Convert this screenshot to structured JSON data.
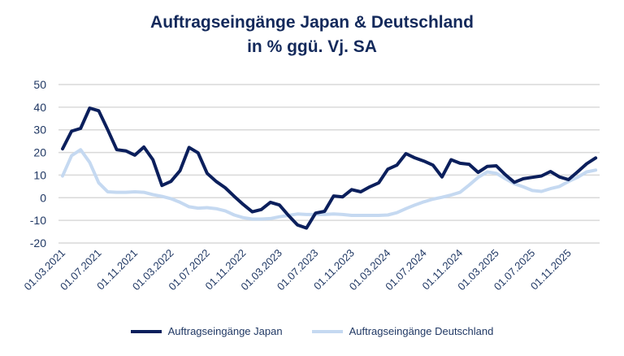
{
  "chart_data": {
    "type": "line",
    "title": "Auftragseingänge Japan & Deutschland",
    "subtitle": "in % ggü. Vj. SA",
    "xlabel": "",
    "ylabel": "",
    "ylim": [
      -20,
      50
    ],
    "yticks": [
      "50",
      "40",
      "30",
      "20",
      "10",
      "0",
      "-10",
      "-20"
    ],
    "xtick_labels": [
      "01.03.2021",
      "01.07.2021",
      "01.11.2021",
      "01.03.2022",
      "01.07.2022",
      "01.11.2022",
      "01.03.2023",
      "01.07.2023",
      "01.11.2023",
      "01.03.2024",
      "01.07.2024",
      "01.11.2024",
      "01.03.2025",
      "01.07.2025",
      "01.11.2025"
    ],
    "x_start": "2021-03",
    "x_frequency": "monthly",
    "grid": "horizontal",
    "legend_position": "bottom",
    "series": [
      {
        "name": "Auftragseingänge Japan",
        "color": "#0b1f5c",
        "values": [
          21.6,
          29.4,
          30.6,
          39.6,
          38.4,
          30,
          21.2,
          20.7,
          18.8,
          22.4,
          16.8,
          5.4,
          7.2,
          12,
          22.2,
          19.8,
          10.8,
          7.2,
          4.4,
          0.6,
          -3,
          -6.2,
          -5.2,
          -2,
          -3.2,
          -7.8,
          -12,
          -13.4,
          -6.8,
          -6,
          0.8,
          0.4,
          3.6,
          2.6,
          4.8,
          6.6,
          12.6,
          14.4,
          19.5,
          17.6,
          16.2,
          14.4,
          9.2,
          16.8,
          15.2,
          14.8,
          11.2,
          13.8,
          14.1,
          10.2,
          6.8,
          8.4,
          9,
          9.6,
          11.6,
          9.2,
          8,
          11.4,
          15,
          17.6
        ]
      },
      {
        "name": "Auftragseingänge Deutschland",
        "color": "#c5d9f1",
        "values": [
          9.6,
          18.6,
          21.2,
          15.6,
          6.6,
          2.6,
          2.4,
          2.4,
          2.6,
          2.4,
          1.4,
          0.6,
          -0.4,
          -2,
          -4,
          -4.6,
          -4.4,
          -4.8,
          -5.8,
          -7.6,
          -8.8,
          -9.4,
          -9.4,
          -9.2,
          -8.4,
          -7.8,
          -7.2,
          -7.4,
          -7.4,
          -7.4,
          -7.2,
          -7.4,
          -7.8,
          -7.8,
          -7.8,
          -7.8,
          -7.6,
          -6.6,
          -4.8,
          -3.2,
          -1.8,
          -0.6,
          0.2,
          1.2,
          2.4,
          5.6,
          9,
          11.4,
          10.8,
          8.4,
          6.2,
          4.8,
          3.2,
          2.8,
          4,
          5,
          7.2,
          9,
          11.4,
          12.2
        ]
      }
    ]
  }
}
